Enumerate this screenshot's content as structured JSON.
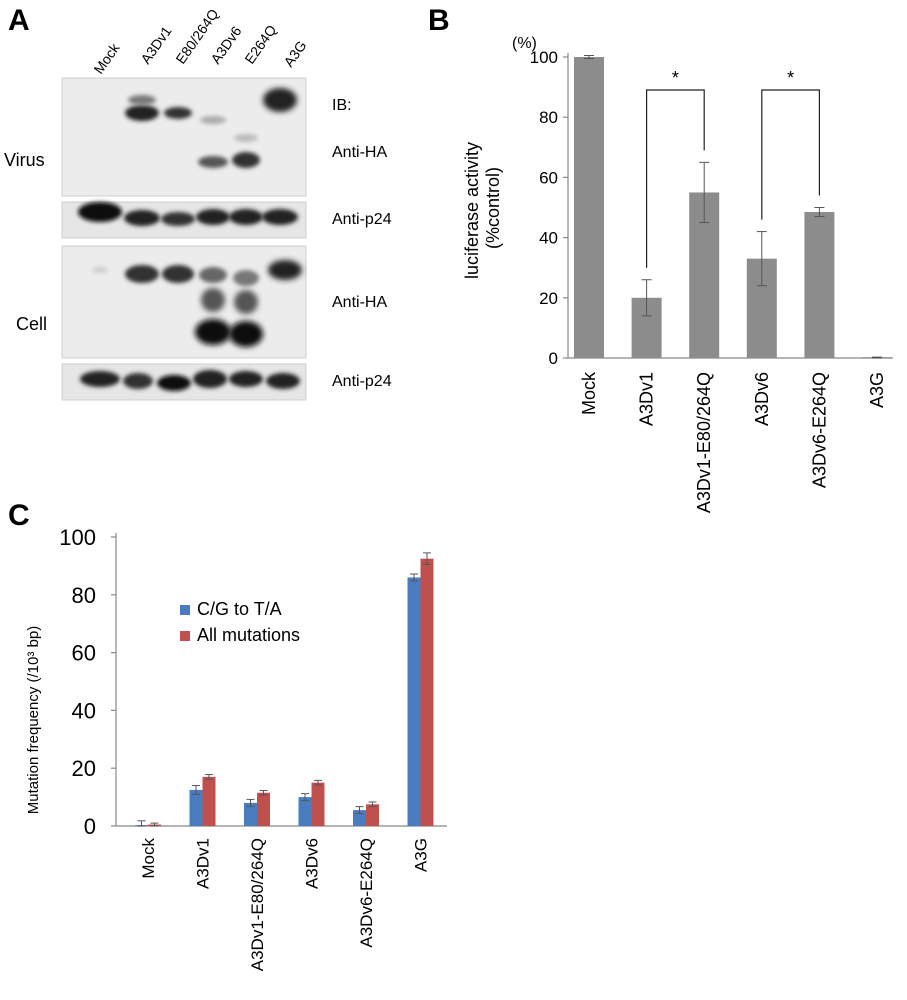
{
  "panel_a": {
    "letter": "A",
    "lanes": [
      "Mock",
      "A3Dv1",
      "E80/264Q",
      "A3Dv6",
      "E264Q",
      "A3G"
    ],
    "section_labels": [
      "Virus",
      "Cell"
    ],
    "ib_label": "IB:",
    "antibody_labels": [
      "Anti-HA",
      "Anti-p24",
      "Anti-HA",
      "Anti-p24"
    ]
  },
  "panel_b": {
    "letter": "B"
  },
  "panel_c": {
    "letter": "C"
  },
  "chart_data": [
    {
      "type": "bar",
      "panel": "B",
      "categories": [
        "Mock",
        "A3Dv1",
        "A3Dv1-E80/264Q",
        "A3Dv6",
        "A3Dv6-E264Q",
        "A3G"
      ],
      "values": [
        100,
        20,
        55,
        33,
        48.5,
        0
      ],
      "errors": [
        0.5,
        6,
        10,
        9,
        1.5,
        0.3
      ],
      "ylabel": "luciferase activity\n(%control)",
      "unit_label": "(%)",
      "ylim": [
        0,
        100
      ],
      "yticks": [
        0,
        20,
        40,
        60,
        80,
        100
      ],
      "bar_color": "#8c8c8c",
      "grid": false,
      "significance": [
        {
          "from": "A3Dv1",
          "to": "A3Dv1-E80/264Q",
          "label": "*"
        },
        {
          "from": "A3Dv6",
          "to": "A3Dv6-E264Q",
          "label": "*"
        }
      ]
    },
    {
      "type": "bar",
      "panel": "C",
      "categories": [
        "Mock",
        "A3Dv1",
        "A3Dv1-E80/264Q",
        "A3Dv6",
        "A3Dv6-E264Q",
        "A3G"
      ],
      "series": [
        {
          "name": "C/G to T/A",
          "color": "#4a7dc0",
          "values": [
            0.3,
            12.5,
            8,
            10,
            5.5,
            86
          ],
          "errors": [
            1.5,
            1.5,
            1.2,
            1.2,
            1.2,
            1.2
          ]
        },
        {
          "name": "All mutations",
          "color": "#c0504d",
          "values": [
            0.5,
            17,
            11.5,
            15,
            7.5,
            92.5
          ],
          "errors": [
            0.5,
            0.8,
            0.8,
            0.8,
            0.8,
            2.0
          ]
        }
      ],
      "ylabel": "Mutation frequency (/10³ bp)",
      "ylim": [
        0,
        100
      ],
      "yticks": [
        0,
        20,
        40,
        60,
        80,
        100
      ],
      "legend": "upper-left",
      "grid": false
    }
  ]
}
